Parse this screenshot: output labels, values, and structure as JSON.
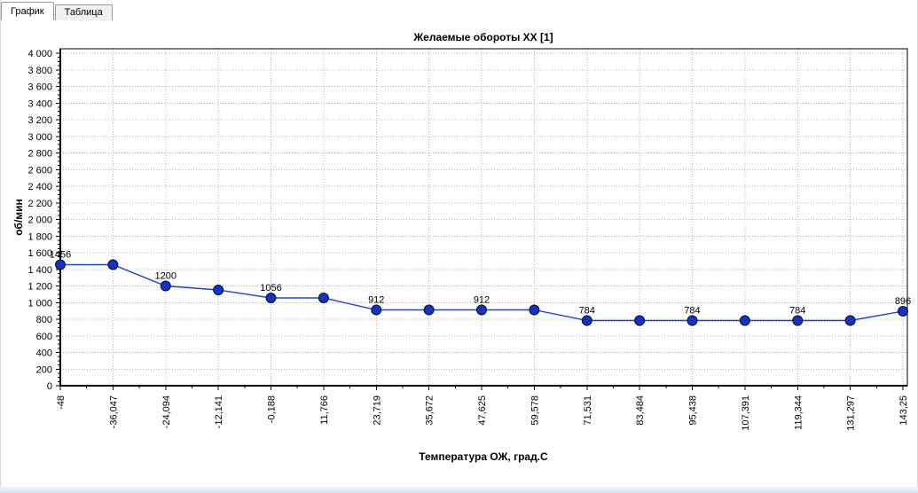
{
  "tabs": [
    {
      "label": "График",
      "active": true
    },
    {
      "label": "Таблица",
      "active": false
    }
  ],
  "chart_data": {
    "type": "line",
    "title": "Желаемые обороты ХХ [1]",
    "xlabel": "Температура ОЖ, град.С",
    "ylabel": "об/мин",
    "x": [
      -48,
      -36.047,
      -24.094,
      -12.141,
      -0.188,
      11.766,
      23.719,
      35.672,
      47.625,
      59.578,
      71.531,
      83.484,
      95.438,
      107.391,
      119.344,
      131.297,
      143.25
    ],
    "x_tick_labels": [
      "-48",
      "-36,047",
      "-24,094",
      "-12,141",
      "-0,188",
      "11,766",
      "23,719",
      "35,672",
      "47,625",
      "59,578",
      "71,531",
      "83,484",
      "95,438",
      "107,391",
      "119,344",
      "131,297",
      "143,25"
    ],
    "values": [
      1456,
      1456,
      1200,
      1152,
      1056,
      1056,
      912,
      912,
      912,
      912,
      784,
      784,
      784,
      784,
      784,
      784,
      896
    ],
    "point_labels": [
      "1456",
      null,
      "1200",
      null,
      "1056",
      null,
      "912",
      null,
      "912",
      null,
      "784",
      null,
      "784",
      null,
      "784",
      null,
      "896"
    ],
    "ylim": [
      0,
      4000
    ],
    "y_tick_step": 200,
    "xlim": [
      -48,
      143.25
    ],
    "grid": true,
    "legend": "none",
    "line_color": "#2143c8",
    "marker_color": "#1733bd",
    "marker_edge_color": "#02103f",
    "label_color": "#993333",
    "grid_color": "#b5b5b5"
  },
  "status_strip_color": "#d7e7f4"
}
